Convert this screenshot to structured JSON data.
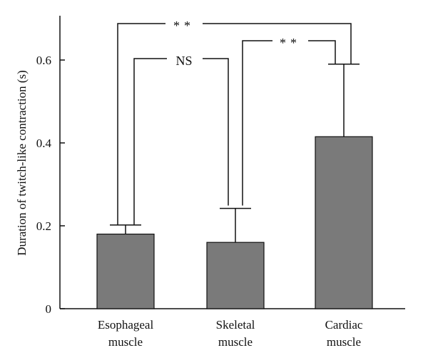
{
  "chart_data": {
    "type": "bar",
    "ylabel": "Duration of twitch-like contraction (s)",
    "ylim": [
      0,
      0.7
    ],
    "yticks": [
      0,
      0.2,
      0.4,
      0.6
    ],
    "ytick_labels": [
      "0",
      "0.2",
      "0.4",
      "0.6"
    ],
    "categories": [
      [
        "Esophageal",
        "muscle"
      ],
      [
        "Skeletal",
        "muscle"
      ],
      [
        "Cardiac",
        "muscle"
      ]
    ],
    "values": [
      0.18,
      0.16,
      0.415
    ],
    "errors": [
      0.022,
      0.082,
      0.175
    ],
    "bar_color": "#7a7a7a",
    "significance": [
      {
        "between": [
          0,
          2
        ],
        "label": "**"
      },
      {
        "between": [
          0,
          1
        ],
        "label": "NS"
      },
      {
        "between": [
          1,
          2
        ],
        "label": "**"
      }
    ]
  }
}
